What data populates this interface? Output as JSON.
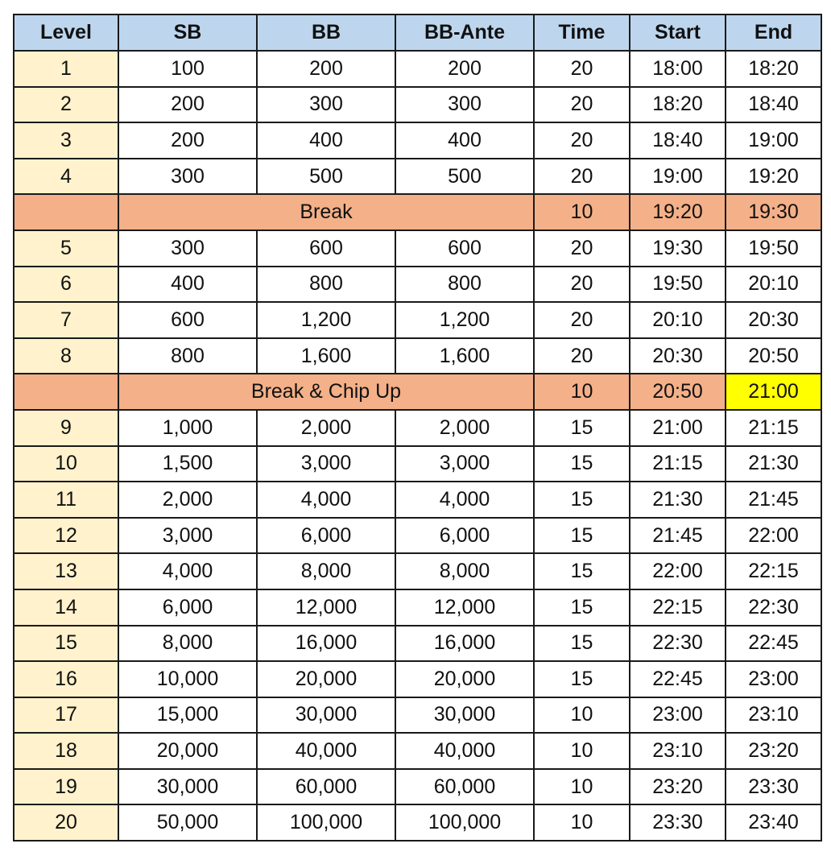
{
  "headers": [
    "Level",
    "SB",
    "BB",
    "BB-Ante",
    "Time",
    "Start",
    "End"
  ],
  "colors": {
    "header": "#bdd6ee",
    "level_column": "#fff2cc",
    "break_row": "#f4b088",
    "highlight": "#ffff00"
  },
  "rows": [
    {
      "level": "1",
      "sb": "100",
      "bb": "200",
      "ante": "200",
      "time": "20",
      "start": "18:00",
      "end": "18:20"
    },
    {
      "level": "2",
      "sb": "200",
      "bb": "300",
      "ante": "300",
      "time": "20",
      "start": "18:20",
      "end": "18:40"
    },
    {
      "level": "3",
      "sb": "200",
      "bb": "400",
      "ante": "400",
      "time": "20",
      "start": "18:40",
      "end": "19:00"
    },
    {
      "level": "4",
      "sb": "300",
      "bb": "500",
      "ante": "500",
      "time": "20",
      "start": "19:00",
      "end": "19:20"
    },
    {
      "break": "Break",
      "time": "10",
      "start": "19:20",
      "end": "19:30"
    },
    {
      "level": "5",
      "sb": "300",
      "bb": "600",
      "ante": "600",
      "time": "20",
      "start": "19:30",
      "end": "19:50"
    },
    {
      "level": "6",
      "sb": "400",
      "bb": "800",
      "ante": "800",
      "time": "20",
      "start": "19:50",
      "end": "20:10"
    },
    {
      "level": "7",
      "sb": "600",
      "bb": "1,200",
      "ante": "1,200",
      "time": "20",
      "start": "20:10",
      "end": "20:30"
    },
    {
      "level": "8",
      "sb": "800",
      "bb": "1,600",
      "ante": "1,600",
      "time": "20",
      "start": "20:30",
      "end": "20:50"
    },
    {
      "break": "Break & Chip Up",
      "time": "10",
      "start": "20:50",
      "end": "21:00",
      "end_highlighted": true
    },
    {
      "level": "9",
      "sb": "1,000",
      "bb": "2,000",
      "ante": "2,000",
      "time": "15",
      "start": "21:00",
      "end": "21:15"
    },
    {
      "level": "10",
      "sb": "1,500",
      "bb": "3,000",
      "ante": "3,000",
      "time": "15",
      "start": "21:15",
      "end": "21:30"
    },
    {
      "level": "11",
      "sb": "2,000",
      "bb": "4,000",
      "ante": "4,000",
      "time": "15",
      "start": "21:30",
      "end": "21:45"
    },
    {
      "level": "12",
      "sb": "3,000",
      "bb": "6,000",
      "ante": "6,000",
      "time": "15",
      "start": "21:45",
      "end": "22:00"
    },
    {
      "level": "13",
      "sb": "4,000",
      "bb": "8,000",
      "ante": "8,000",
      "time": "15",
      "start": "22:00",
      "end": "22:15"
    },
    {
      "level": "14",
      "sb": "6,000",
      "bb": "12,000",
      "ante": "12,000",
      "time": "15",
      "start": "22:15",
      "end": "22:30"
    },
    {
      "level": "15",
      "sb": "8,000",
      "bb": "16,000",
      "ante": "16,000",
      "time": "15",
      "start": "22:30",
      "end": "22:45"
    },
    {
      "level": "16",
      "sb": "10,000",
      "bb": "20,000",
      "ante": "20,000",
      "time": "15",
      "start": "22:45",
      "end": "23:00"
    },
    {
      "level": "17",
      "sb": "15,000",
      "bb": "30,000",
      "ante": "30,000",
      "time": "10",
      "start": "23:00",
      "end": "23:10"
    },
    {
      "level": "18",
      "sb": "20,000",
      "bb": "40,000",
      "ante": "40,000",
      "time": "10",
      "start": "23:10",
      "end": "23:20"
    },
    {
      "level": "19",
      "sb": "30,000",
      "bb": "60,000",
      "ante": "60,000",
      "time": "10",
      "start": "23:20",
      "end": "23:30"
    },
    {
      "level": "20",
      "sb": "50,000",
      "bb": "100,000",
      "ante": "100,000",
      "time": "10",
      "start": "23:30",
      "end": "23:40"
    }
  ]
}
